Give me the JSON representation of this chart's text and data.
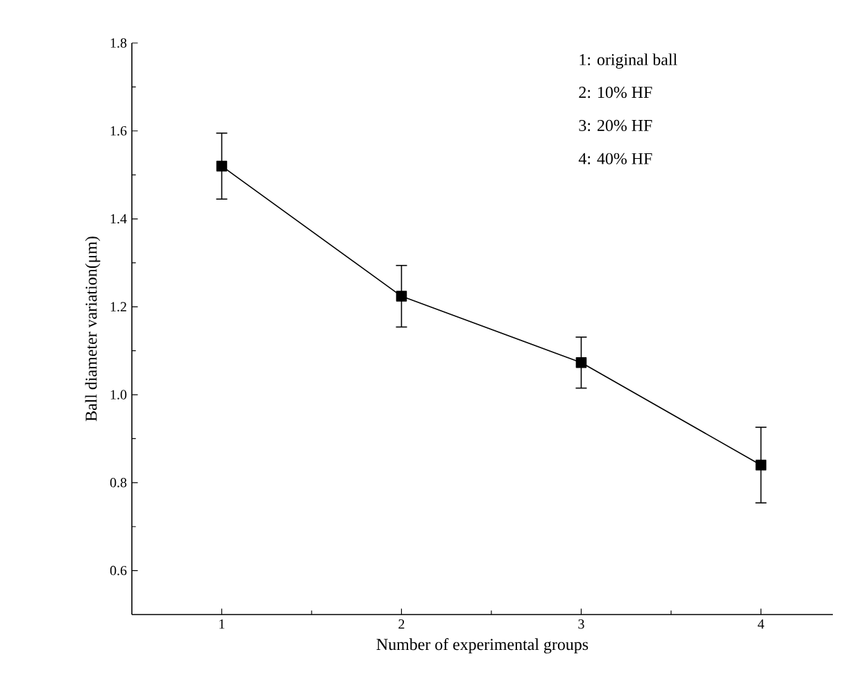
{
  "chart_data": {
    "type": "line",
    "xlabel": "Number of experimental groups",
    "ylabel": "Ball diameter variation(μm)",
    "x": [
      1,
      2,
      3,
      4
    ],
    "values": [
      1.52,
      1.224,
      1.073,
      0.84
    ],
    "errors": [
      0.075,
      0.07,
      0.058,
      0.086
    ],
    "color": "#000000",
    "marker": "square",
    "line_style": "solid",
    "xlim": [
      0.5,
      4.4
    ],
    "xticks": [
      1,
      2,
      3,
      4
    ],
    "ylim": [
      0.5,
      1.8
    ],
    "yticks": [
      0.6,
      0.8,
      {
        "value": 1,
        "label": "1.0"
      },
      1.2,
      1.4,
      1.6,
      1.8
    ],
    "grid": false,
    "annotations": [
      "1:   original ball",
      "2:   10% HF",
      "3:   20% HF",
      "4:   40% HF"
    ]
  }
}
